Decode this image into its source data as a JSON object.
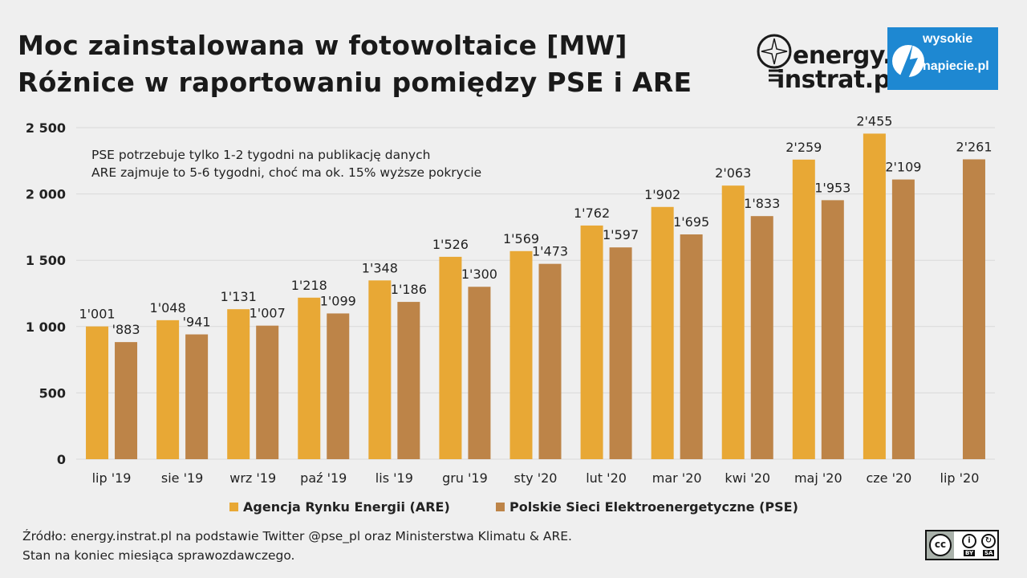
{
  "header": {
    "title_line1": "Moc zainstalowana w fotowoltaice [MW]",
    "title_line2": "Różnice w raportowaniu pomiędzy PSE i ARE"
  },
  "logos": {
    "energy_word1": "energy.",
    "energy_word2": "instrat.pl",
    "wp_word1": "wysokie",
    "wp_word2": "napiecie.pl",
    "wp_color": "#1e88d2"
  },
  "annotation": {
    "line1": "PSE potrzebuje tylko 1-2 tygodni na publikację danych",
    "line2": "ARE zajmuje to 5-6 tygodni, choć ma ok. 15% wyższe pokrycie"
  },
  "chart_data": {
    "type": "bar",
    "categories": [
      "lip '19",
      "sie '19",
      "wrz '19",
      "paź '19",
      "lis '19",
      "gru '19",
      "sty '20",
      "lut '20",
      "mar '20",
      "kwi '20",
      "maj '20",
      "cze '20",
      "lip '20"
    ],
    "series": [
      {
        "name": "Agencja Rynku Energii (ARE)",
        "color": "#e8a835",
        "values": [
          1001,
          1048,
          1131,
          1218,
          1348,
          1526,
          1569,
          1762,
          1902,
          2063,
          2259,
          2455,
          null
        ],
        "labels": [
          "1'001",
          "1'048",
          "1'131",
          "1'218",
          "1'348",
          "1'526",
          "1'569",
          "1'762",
          "1'902",
          "2'063",
          "2'259",
          "2'455",
          ""
        ]
      },
      {
        "name": "Polskie Sieci Elektroenergetyczne (PSE)",
        "color": "#bd8448",
        "values": [
          883,
          941,
          1007,
          1099,
          1186,
          1300,
          1473,
          1597,
          1695,
          1833,
          1953,
          2109,
          2261
        ],
        "labels": [
          "'883",
          "'941",
          "1'007",
          "1'099",
          "1'186",
          "1'300",
          "1'473",
          "1'597",
          "1'695",
          "1'833",
          "1'953",
          "2'109",
          "2'261"
        ]
      }
    ],
    "ylim": [
      0,
      2500
    ],
    "yticks": [
      0,
      500,
      1000,
      1500,
      2000,
      2500
    ],
    "ytick_labels": [
      "0",
      "500",
      "1 000",
      "1 500",
      "2 000",
      "2 500"
    ],
    "grid": true,
    "legend_position": "bottom"
  },
  "footer": {
    "source_line1": "Źródło: energy.instrat.pl na podstawie Twitter @pse_pl oraz Ministerstwa Klimatu & ARE.",
    "source_line2": "Stan na koniec miesiąca sprawozdawczego."
  },
  "license": {
    "cc": "cc",
    "by": "BY",
    "sa": "SA"
  }
}
